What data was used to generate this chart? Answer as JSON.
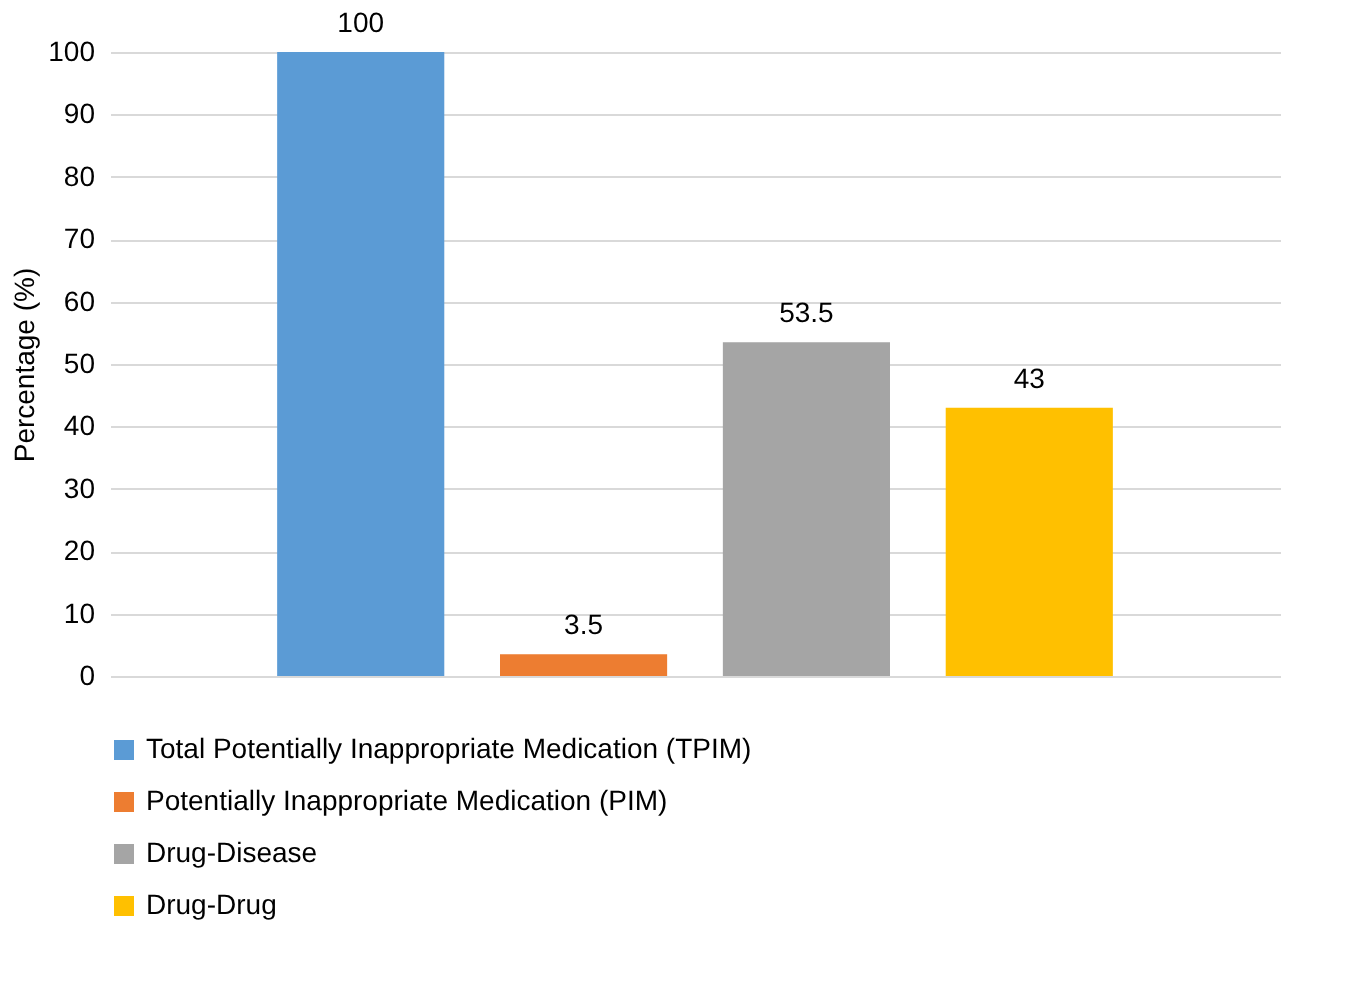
{
  "chart_data": {
    "type": "bar",
    "ylabel": "Percentage  (%)",
    "categories": [
      null
    ],
    "series": [
      {
        "name": "Total Potentially Inappropriate Medication (TPIM)",
        "color": "#5b9bd5",
        "values": [
          100
        ]
      },
      {
        "name": "Potentially Inappropriate Medication (PIM)",
        "color": "#ed7d31",
        "values": [
          3.5
        ]
      },
      {
        "name": "Drug-Disease",
        "color": "#a5a5a5",
        "values": [
          53.5
        ]
      },
      {
        "name": "Drug-Drug",
        "color": "#ffc000",
        "values": [
          43
        ]
      }
    ],
    "ylim": [
      0,
      100
    ],
    "yticks": [
      0,
      10,
      20,
      30,
      40,
      50,
      60,
      70,
      80,
      90,
      100
    ],
    "grid": "y",
    "legend": "bottom",
    "data_labels": true,
    "tick_labels": "y"
  }
}
